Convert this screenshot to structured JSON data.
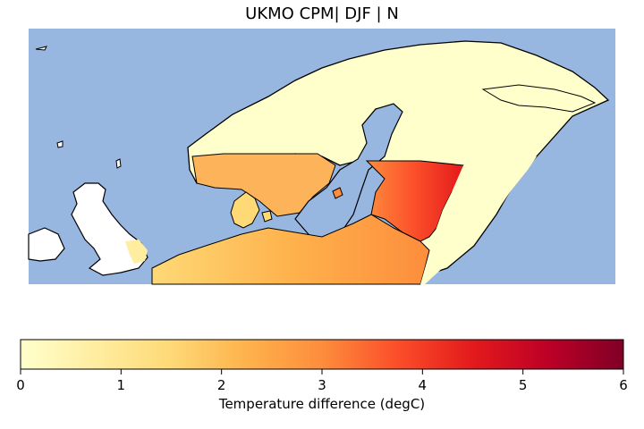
{
  "title": "UKMO CPM| DJF | N",
  "colorbar": {
    "label": "Temperature difference (degC)",
    "ticks": [
      "0",
      "1",
      "2",
      "3",
      "4",
      "5",
      "6"
    ],
    "min": 0,
    "max": 6,
    "colormap": "YlOrRd"
  },
  "colors": {
    "ocean": "#97b6e0",
    "land_outline": "#000000",
    "low": "#ffffcc",
    "high": "#800026"
  }
}
